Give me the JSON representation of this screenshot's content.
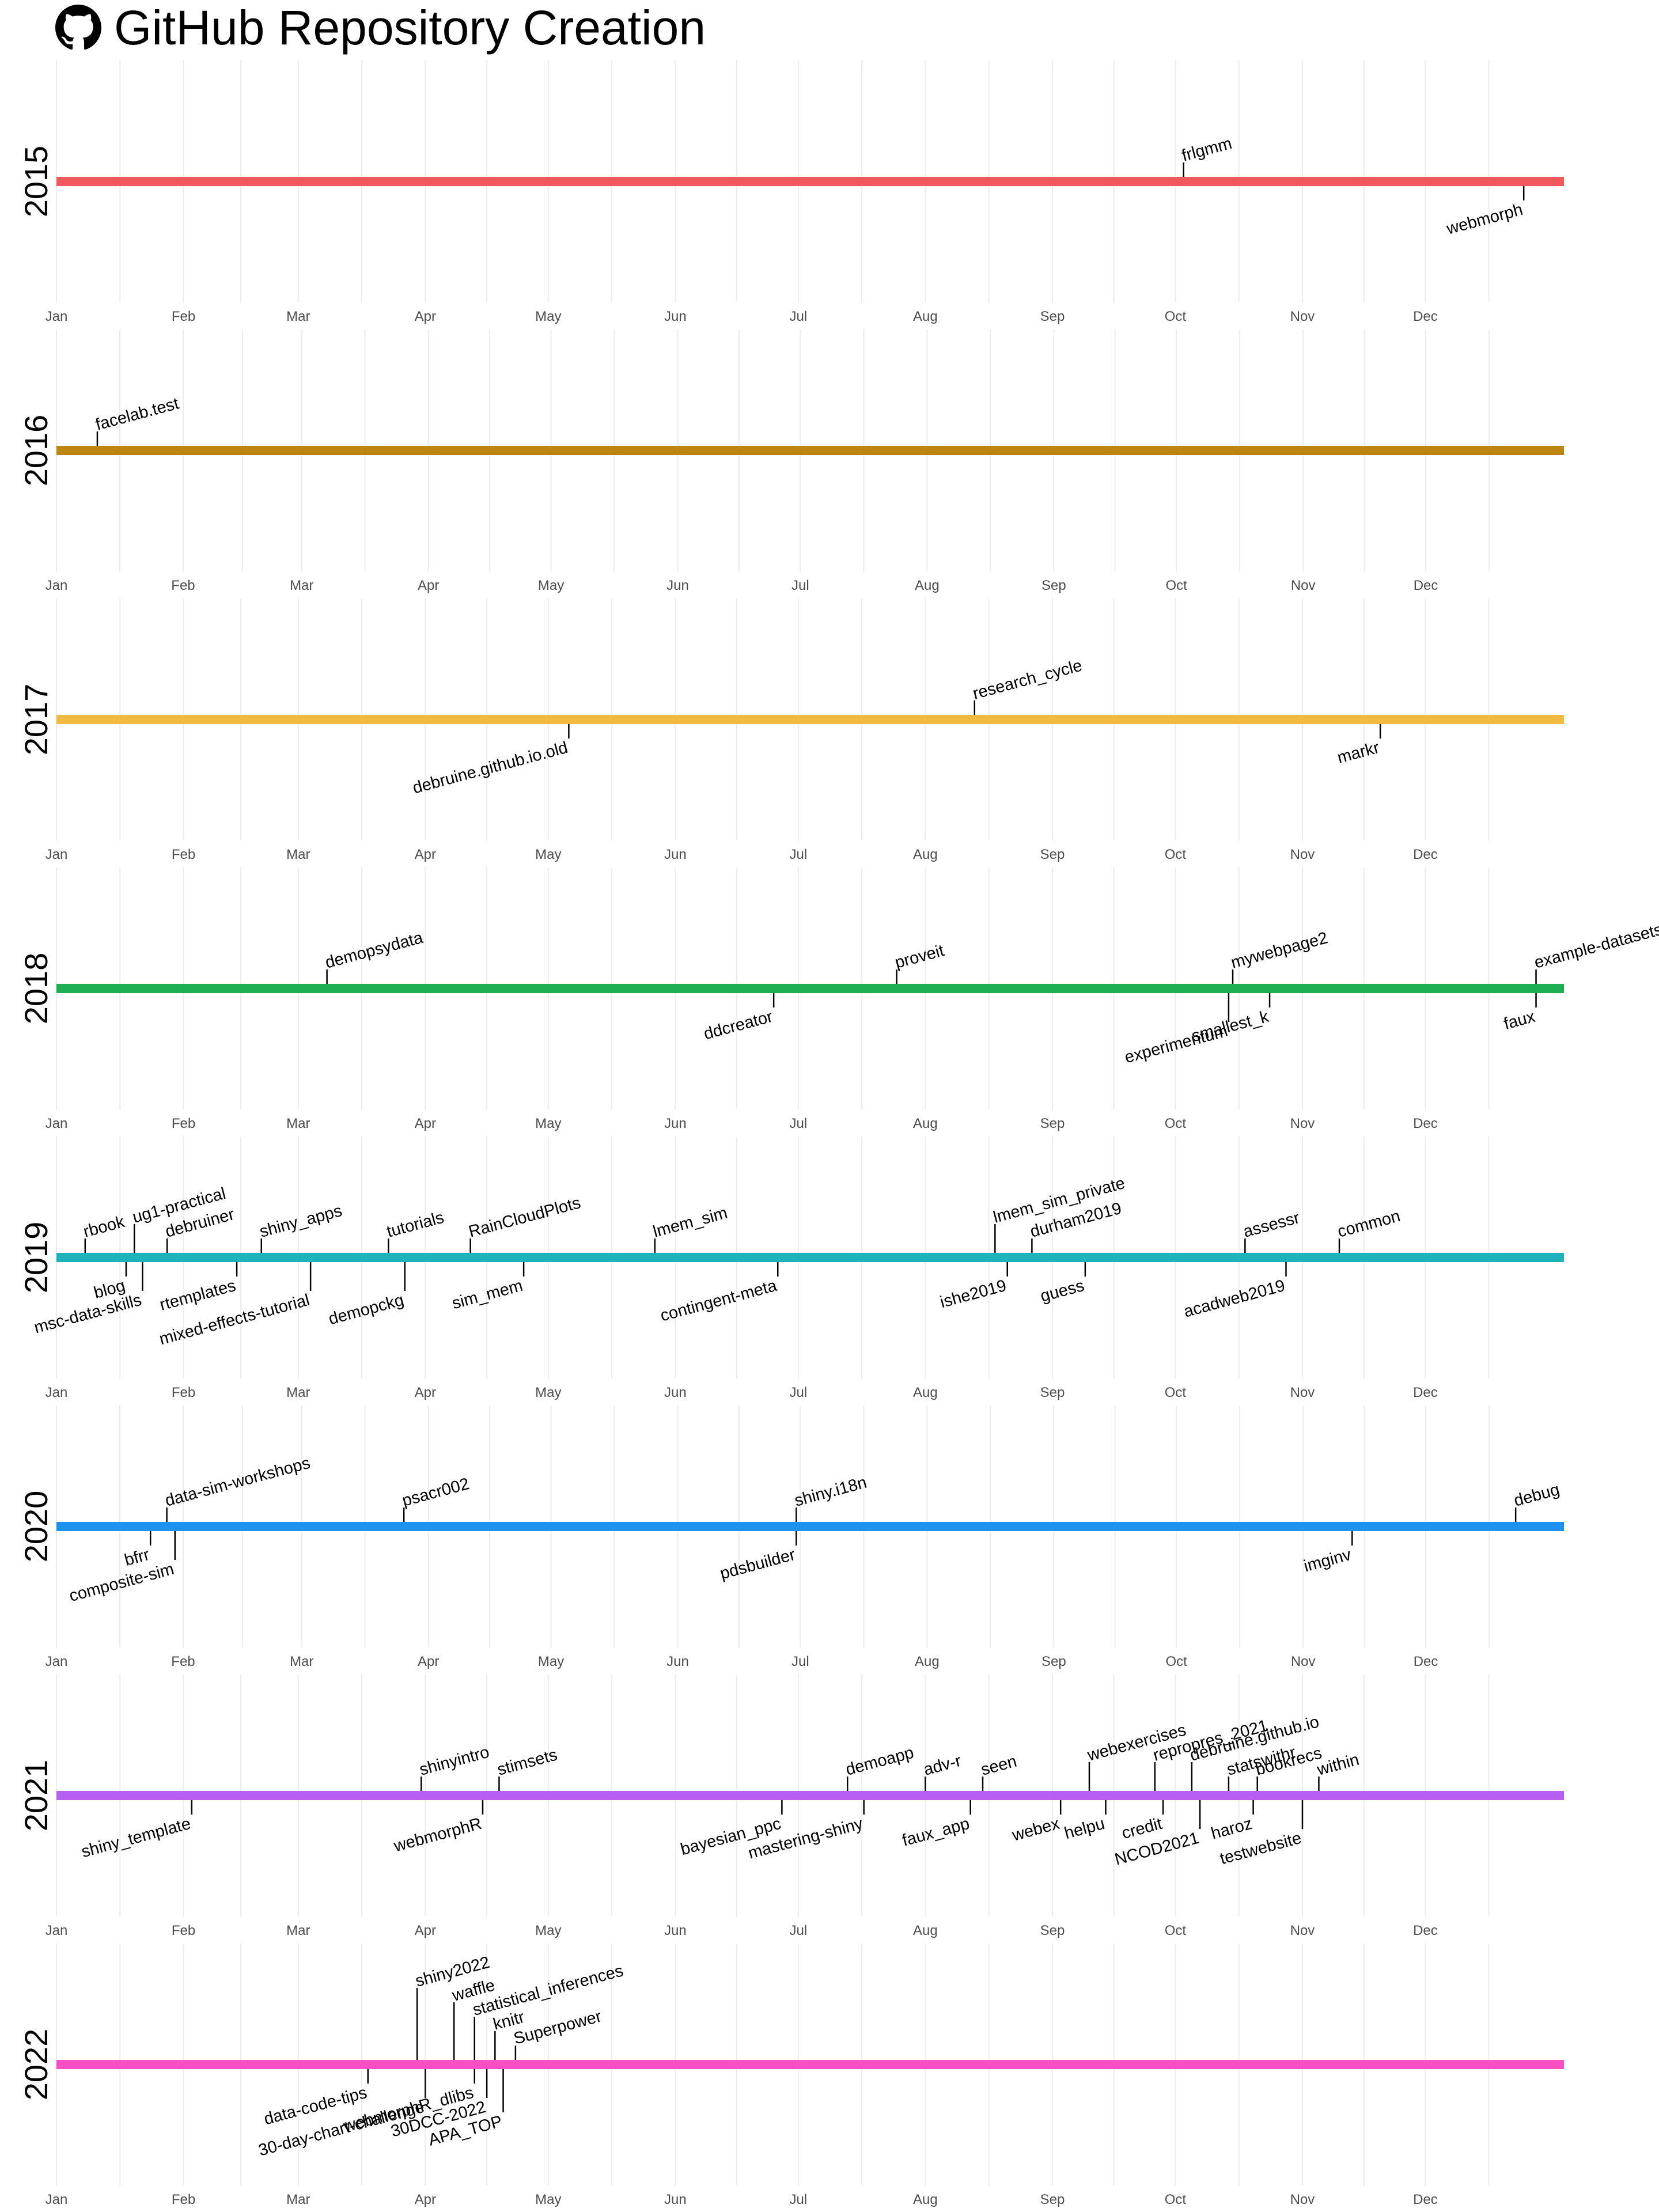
{
  "title": "GitHub Repository Creation",
  "icon": "github-icon",
  "chart_data": {
    "type": "timeline",
    "x_axis": {
      "ticks": [
        "Jan",
        "Feb",
        "Mar",
        "Apr",
        "May",
        "Jun",
        "Jul",
        "Aug",
        "Sep",
        "Oct",
        "Nov",
        "Dec"
      ]
    },
    "grid": true,
    "legend": "none",
    "years": [
      {
        "year": "2015",
        "color": "#F0585B",
        "repos": [
          {
            "name": "frlgmm",
            "date": "2015-10-03",
            "level": 1
          },
          {
            "name": "webmorph",
            "date": "2015-12-25",
            "level": -1
          }
        ]
      },
      {
        "year": "2016",
        "color": "#BE8610",
        "repos": [
          {
            "name": "facelab.test",
            "date": "2016-01-11",
            "level": 1
          }
        ]
      },
      {
        "year": "2017",
        "color": "#F2BA3F",
        "repos": [
          {
            "name": "debruine.github.io.old",
            "date": "2017-05-06",
            "level": -1
          },
          {
            "name": "research_cycle",
            "date": "2017-08-13",
            "level": 1
          },
          {
            "name": "markr",
            "date": "2017-11-20",
            "level": -1
          }
        ]
      },
      {
        "year": "2018",
        "color": "#1FAF53",
        "repos": [
          {
            "name": "demopsydata",
            "date": "2018-03-08",
            "level": 1
          },
          {
            "name": "ddcreator",
            "date": "2018-06-25",
            "level": -1
          },
          {
            "name": "proveit",
            "date": "2018-07-25",
            "level": 1
          },
          {
            "name": "mywebpage2",
            "date": "2018-10-15",
            "level": 1
          },
          {
            "name": "experimentum",
            "date": "2018-10-14",
            "level": -2
          },
          {
            "name": "smallest_k",
            "date": "2018-10-24",
            "level": -1
          },
          {
            "name": "example-datasets",
            "date": "2018-12-28",
            "level": 1
          },
          {
            "name": "faux",
            "date": "2018-12-28",
            "level": -1
          }
        ]
      },
      {
        "year": "2019",
        "color": "#1EB2BC",
        "repos": [
          {
            "name": "rbook",
            "date": "2019-01-08",
            "level": 1
          },
          {
            "name": "blog",
            "date": "2019-01-18",
            "level": -1
          },
          {
            "name": "ug1-practical",
            "date": "2019-01-20",
            "level": 2
          },
          {
            "name": "msc-data-skills",
            "date": "2019-01-22",
            "level": -2
          },
          {
            "name": "debruiner",
            "date": "2019-01-28",
            "level": 1
          },
          {
            "name": "rtemplates",
            "date": "2019-02-14",
            "level": -1
          },
          {
            "name": "shiny_apps",
            "date": "2019-02-20",
            "level": 1
          },
          {
            "name": "mixed-effects-tutorial",
            "date": "2019-03-04",
            "level": -2
          },
          {
            "name": "tutorials",
            "date": "2019-03-23",
            "level": 1
          },
          {
            "name": "demopckg",
            "date": "2019-03-27",
            "level": -2
          },
          {
            "name": "RainCloudPlots",
            "date": "2019-04-12",
            "level": 1
          },
          {
            "name": "sim_mem",
            "date": "2019-04-25",
            "level": -1
          },
          {
            "name": "lmem_sim",
            "date": "2019-05-27",
            "level": 1
          },
          {
            "name": "contingent-meta",
            "date": "2019-06-26",
            "level": -1
          },
          {
            "name": "lmem_sim_private",
            "date": "2019-08-18",
            "level": 2
          },
          {
            "name": "ishe2019",
            "date": "2019-08-21",
            "level": -1
          },
          {
            "name": "durham2019",
            "date": "2019-08-27",
            "level": 1
          },
          {
            "name": "guess",
            "date": "2019-09-09",
            "level": -1
          },
          {
            "name": "assessr",
            "date": "2019-10-18",
            "level": 1
          },
          {
            "name": "acadweb2019",
            "date": "2019-10-28",
            "level": -1
          },
          {
            "name": "common",
            "date": "2019-11-10",
            "level": 1
          }
        ]
      },
      {
        "year": "2020",
        "color": "#1E93EE",
        "repos": [
          {
            "name": "bfrr",
            "date": "2020-01-24",
            "level": -1
          },
          {
            "name": "data-sim-workshops",
            "date": "2020-01-28",
            "level": 1
          },
          {
            "name": "composite-sim",
            "date": "2020-01-30",
            "level": -2
          },
          {
            "name": "psacr002",
            "date": "2020-03-26",
            "level": 1
          },
          {
            "name": "pdsbuilder",
            "date": "2020-06-30",
            "level": -1
          },
          {
            "name": "shiny.i18n",
            "date": "2020-06-30",
            "level": 1
          },
          {
            "name": "imginv",
            "date": "2020-11-13",
            "level": -1
          },
          {
            "name": "debug",
            "date": "2020-12-23",
            "level": 1
          }
        ]
      },
      {
        "year": "2021",
        "color": "#B65FF0",
        "repos": [
          {
            "name": "shiny_template",
            "date": "2021-02-03",
            "level": -1
          },
          {
            "name": "shinyintro",
            "date": "2021-03-31",
            "level": 1
          },
          {
            "name": "webmorphR",
            "date": "2021-04-15",
            "level": -1
          },
          {
            "name": "stimsets",
            "date": "2021-04-19",
            "level": 1
          },
          {
            "name": "bayesian_ppc",
            "date": "2021-06-27",
            "level": -1
          },
          {
            "name": "demoapp",
            "date": "2021-07-13",
            "level": 1
          },
          {
            "name": "mastering-shiny",
            "date": "2021-07-17",
            "level": -1
          },
          {
            "name": "adv-r",
            "date": "2021-08-01",
            "level": 1
          },
          {
            "name": "faux_app",
            "date": "2021-08-12",
            "level": -1
          },
          {
            "name": "seen",
            "date": "2021-08-15",
            "level": 1
          },
          {
            "name": "webex",
            "date": "2021-09-03",
            "level": -1
          },
          {
            "name": "webexercises",
            "date": "2021-09-10",
            "level": 2
          },
          {
            "name": "helpu",
            "date": "2021-09-14",
            "level": -1
          },
          {
            "name": "repropres_2021",
            "date": "2021-09-26",
            "level": 2
          },
          {
            "name": "credit",
            "date": "2021-09-28",
            "level": -1
          },
          {
            "name": "debruine.github.io",
            "date": "2021-10-05",
            "level": 2
          },
          {
            "name": "NCOD2021",
            "date": "2021-10-07",
            "level": -2
          },
          {
            "name": "statswithr",
            "date": "2021-10-14",
            "level": 1
          },
          {
            "name": "haroz",
            "date": "2021-10-20",
            "level": -1
          },
          {
            "name": "bookrecs",
            "date": "2021-10-21",
            "level": 1
          },
          {
            "name": "testwebsite",
            "date": "2021-11-01",
            "level": -2
          },
          {
            "name": "within",
            "date": "2021-11-05",
            "level": 1
          }
        ]
      },
      {
        "year": "2022",
        "color": "#F94FC4",
        "repos": [
          {
            "name": "data-code-tips",
            "date": "2022-03-18",
            "level": -1
          },
          {
            "name": "shiny2022",
            "date": "2022-03-30",
            "level": 5
          },
          {
            "name": "30-day-chart-challenge",
            "date": "2022-04-01",
            "level": -2
          },
          {
            "name": "waffle",
            "date": "2022-04-08",
            "level": 4
          },
          {
            "name": "webmorphR_dlibs",
            "date": "2022-04-13",
            "level": -1
          },
          {
            "name": "statistical_inferences",
            "date": "2022-04-13",
            "level": 3
          },
          {
            "name": "30DCC-2022",
            "date": "2022-04-16",
            "level": -2
          },
          {
            "name": "knitr",
            "date": "2022-04-18",
            "level": 2
          },
          {
            "name": "APA_TOP",
            "date": "2022-04-20",
            "level": -3
          },
          {
            "name": "Superpower",
            "date": "2022-04-23",
            "level": 1
          }
        ]
      }
    ]
  }
}
